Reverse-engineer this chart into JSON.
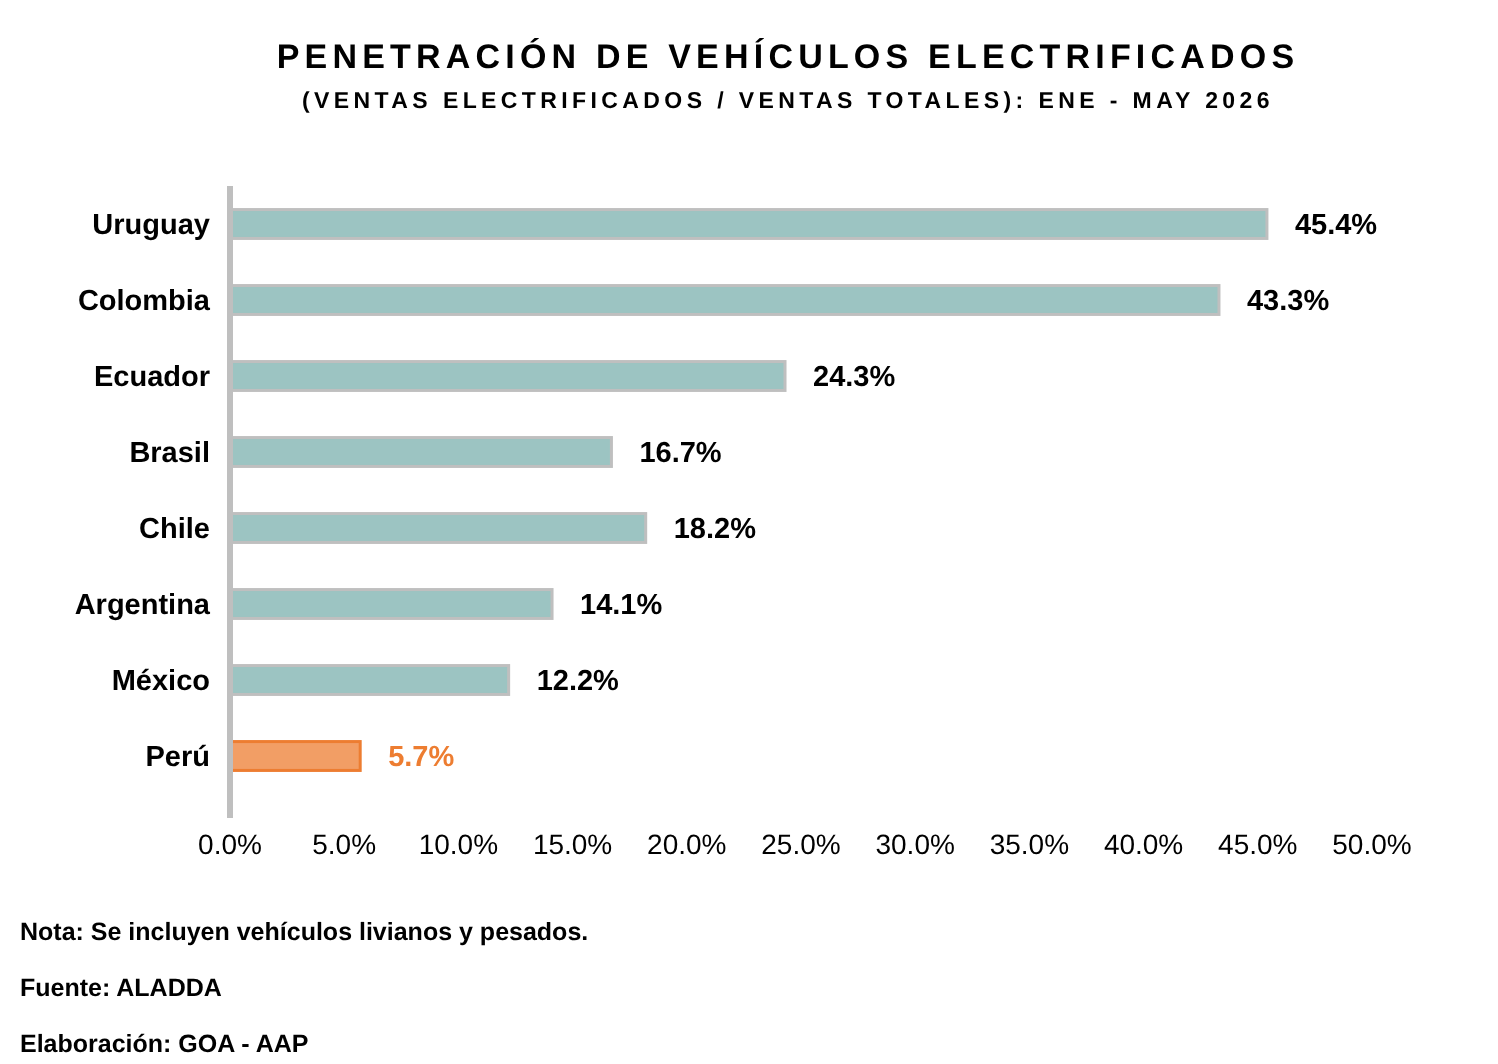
{
  "chart_data": {
    "type": "bar",
    "orientation": "horizontal",
    "title": "PENETRACIÓN DE VEHÍCULOS ELECTRIFICADOS",
    "subtitle": "(VENTAS ELECTRIFICADOS / VENTAS TOTALES): ENE - MAY 2026",
    "categories": [
      "Uruguay",
      "Colombia",
      "Ecuador",
      "Brasil",
      "Chile",
      "Argentina",
      "México",
      "Perú"
    ],
    "values": [
      45.4,
      43.3,
      24.3,
      16.7,
      18.2,
      14.1,
      12.2,
      5.7
    ],
    "colors": [
      "#9cc4c2",
      "#9cc4c2",
      "#9cc4c2",
      "#9cc4c2",
      "#9cc4c2",
      "#9cc4c2",
      "#9cc4c2",
      "#ed7d31"
    ],
    "value_labels": [
      "45.4%",
      "43.3%",
      "24.3%",
      "16.7%",
      "18.2%",
      "14.1%",
      "12.2%",
      "5.7%"
    ],
    "xlim": [
      0,
      50
    ],
    "xticks": [
      {
        "value": 0,
        "label": "0.0%"
      },
      {
        "value": 5,
        "label": "5.0%"
      },
      {
        "value": 10,
        "label": "10.0%"
      },
      {
        "value": 15,
        "label": "15.0%"
      },
      {
        "value": 20,
        "label": "20.0%"
      },
      {
        "value": 25,
        "label": "25.0%"
      },
      {
        "value": 30,
        "label": "30.0%"
      },
      {
        "value": 35,
        "label": "35.0%"
      },
      {
        "value": 40,
        "label": "40.0%"
      },
      {
        "value": 45,
        "label": "45.0%"
      },
      {
        "value": 50,
        "label": "50.0%"
      }
    ],
    "grid": false,
    "annotations": [
      "Nota: Se incluyen vehículos livianos y pesados.",
      "Fuente: ALADDA",
      "Elaboración: GOA -  AAP"
    ]
  }
}
